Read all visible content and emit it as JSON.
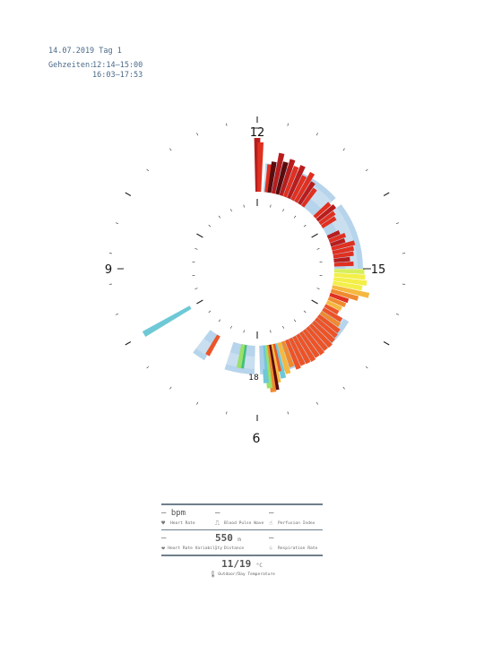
{
  "header": {
    "date": "14.07.2019 Tag 1",
    "times_label": "Gehzeiten:",
    "times": [
      "12:14–15:00",
      "16:03–17:53"
    ]
  },
  "clock": {
    "labels": [
      "12",
      "15",
      "18",
      "9",
      "6"
    ]
  },
  "chart_data": {
    "type": "radial-bar",
    "title": "",
    "dial": "12-hour",
    "hour_labels": [
      "12",
      "15",
      "18",
      "9",
      "6"
    ],
    "sessions": [
      {
        "start": "12:14",
        "end": "15:00"
      },
      {
        "start": "16:03",
        "end": "17:53"
      }
    ],
    "bar_categories": [
      "maroon",
      "dark-red",
      "red",
      "orange-red",
      "orange",
      "amber",
      "yellow",
      "yellow-green",
      "lime",
      "green",
      "cyan",
      "light-blue"
    ],
    "colors": {
      "maroon": "#5a0c0c",
      "dark-red": "#b81d1d",
      "red": "#e03020",
      "orange-red": "#ec5428",
      "orange": "#f08a30",
      "amber": "#f5b840",
      "yellow": "#f4ef48",
      "yellow-green": "#d6ee5c",
      "lime": "#9ae06a",
      "green": "#3ec07e",
      "cyan": "#6ec8d6",
      "light-blue": "#a9cce8",
      "pale-blue": "#d6e6f4"
    },
    "bars": [
      {
        "t": 12.0,
        "c": "dark-red",
        "v": 1.0
      },
      {
        "t": 12.05,
        "c": "red",
        "v": 0.92
      },
      {
        "t": 12.23,
        "c": "red",
        "v": 0.52
      },
      {
        "t": 12.3,
        "c": "maroon",
        "v": 0.58
      },
      {
        "t": 12.4,
        "c": "dark-red",
        "v": 0.76
      },
      {
        "t": 12.5,
        "c": "maroon",
        "v": 0.62
      },
      {
        "t": 12.6,
        "c": "dark-red",
        "v": 0.7
      },
      {
        "t": 12.7,
        "c": "red",
        "v": 0.6
      },
      {
        "t": 12.8,
        "c": "dark-red",
        "v": 0.66
      },
      {
        "t": 12.9,
        "c": "red",
        "v": 0.5
      },
      {
        "t": 13.0,
        "c": "red",
        "v": 0.62
      },
      {
        "t": 13.1,
        "c": "dark-red",
        "v": 0.48
      },
      {
        "t": 13.2,
        "c": "red",
        "v": 0.4
      },
      {
        "t": 13.6,
        "c": "red",
        "v": 0.38
      },
      {
        "t": 13.7,
        "c": "dark-red",
        "v": 0.42
      },
      {
        "t": 13.8,
        "c": "red",
        "v": 0.34
      },
      {
        "t": 13.9,
        "c": "red",
        "v": 0.3
      },
      {
        "t": 14.2,
        "c": "dark-red",
        "v": 0.24
      },
      {
        "t": 14.3,
        "c": "red",
        "v": 0.32
      },
      {
        "t": 14.4,
        "c": "dark-red",
        "v": 0.28
      },
      {
        "t": 14.5,
        "c": "red",
        "v": 0.44
      },
      {
        "t": 14.6,
        "c": "red",
        "v": 0.4
      },
      {
        "t": 14.7,
        "c": "red",
        "v": 0.38
      },
      {
        "t": 14.8,
        "c": "dark-red",
        "v": 0.3
      },
      {
        "t": 14.9,
        "c": "red",
        "v": 0.36
      },
      {
        "t": 15.05,
        "c": "yellow-green",
        "v": 0.56
      },
      {
        "t": 15.15,
        "c": "yellow",
        "v": 0.58
      },
      {
        "t": 15.25,
        "c": "yellow",
        "v": 0.62
      },
      {
        "t": 15.35,
        "c": "yellow",
        "v": 0.55
      },
      {
        "t": 15.45,
        "c": "amber",
        "v": 0.7
      },
      {
        "t": 15.55,
        "c": "orange",
        "v": 0.52
      },
      {
        "t": 15.65,
        "c": "red",
        "v": 0.36
      },
      {
        "t": 15.75,
        "c": "orange",
        "v": 0.34
      },
      {
        "t": 15.85,
        "c": "amber",
        "v": 0.3
      },
      {
        "t": 15.95,
        "c": "orange-red",
        "v": 0.28
      },
      {
        "t": 16.05,
        "c": "orange-red",
        "v": 0.4
      },
      {
        "t": 16.15,
        "c": "orange",
        "v": 0.42
      },
      {
        "t": 16.25,
        "c": "orange-red",
        "v": 0.48
      },
      {
        "t": 16.35,
        "c": "orange-red",
        "v": 0.5
      },
      {
        "t": 16.45,
        "c": "orange-red",
        "v": 0.52
      },
      {
        "t": 16.55,
        "c": "orange-red",
        "v": 0.55
      },
      {
        "t": 16.65,
        "c": "orange-red",
        "v": 0.54
      },
      {
        "t": 16.75,
        "c": "orange-red",
        "v": 0.56
      },
      {
        "t": 16.85,
        "c": "orange-red",
        "v": 0.55
      },
      {
        "t": 16.95,
        "c": "orange-red",
        "v": 0.57
      },
      {
        "t": 17.05,
        "c": "orange-red",
        "v": 0.56
      },
      {
        "t": 17.15,
        "c": "orange-red",
        "v": 0.55
      },
      {
        "t": 17.25,
        "c": "orange-red",
        "v": 0.58
      },
      {
        "t": 17.35,
        "c": "orange",
        "v": 0.5
      },
      {
        "t": 17.45,
        "c": "amber",
        "v": 0.6
      },
      {
        "t": 17.55,
        "c": "cyan",
        "v": 0.66
      },
      {
        "t": 17.6,
        "c": "orange-red",
        "v": 0.52
      },
      {
        "t": 17.65,
        "c": "amber",
        "v": 0.72
      },
      {
        "t": 17.7,
        "c": "maroon",
        "v": 0.85
      },
      {
        "t": 17.75,
        "c": "orange",
        "v": 0.88
      },
      {
        "t": 17.8,
        "c": "lime",
        "v": 0.8
      },
      {
        "t": 17.85,
        "c": "cyan",
        "v": 0.7
      },
      {
        "t": 17.9,
        "c": "light-blue",
        "v": 0.44
      },
      {
        "t": 18.3,
        "c": "green",
        "v": 0.44
      },
      {
        "t": 18.35,
        "c": "lime",
        "v": 0.44
      },
      {
        "t": 19.0,
        "c": "orange-red",
        "v": 0.42
      },
      {
        "t": 20.0,
        "c": "cyan",
        "v": 1.0
      }
    ],
    "background_arcs": [
      {
        "start": 12.15,
        "end": 13.6
      },
      {
        "start": 13.75,
        "end": 15.0
      },
      {
        "start": 16.0,
        "end": 17.95
      },
      {
        "start": 18.05,
        "end": 18.6
      },
      {
        "start": 19.0,
        "end": 19.25
      }
    ]
  },
  "panel": {
    "heart_rate": {
      "value": "— bpm",
      "label": "Heart Rate"
    },
    "blood_pulse_wave": {
      "value": "—",
      "label": "Blood Pulse Wave"
    },
    "perfusion_index": {
      "value": "—",
      "label": "Perfusion Index"
    },
    "heart_rate_variability": {
      "value": "—",
      "label": "Heart Rate Variability"
    },
    "distance": {
      "value": "550",
      "unit": "m",
      "label": "Distance"
    },
    "respiration_rate": {
      "value": "—",
      "label": "Respiration Rate"
    },
    "temperature": {
      "value": "11/19",
      "unit": "°C",
      "label": "Outdoor/Day Temperature"
    }
  },
  "icons": [
    "heart-icon",
    "pulse-wave-icon",
    "perfusion-icon",
    "hrv-heart-icon",
    "footsteps-icon",
    "lungs-icon",
    "thermometer-icon"
  ]
}
